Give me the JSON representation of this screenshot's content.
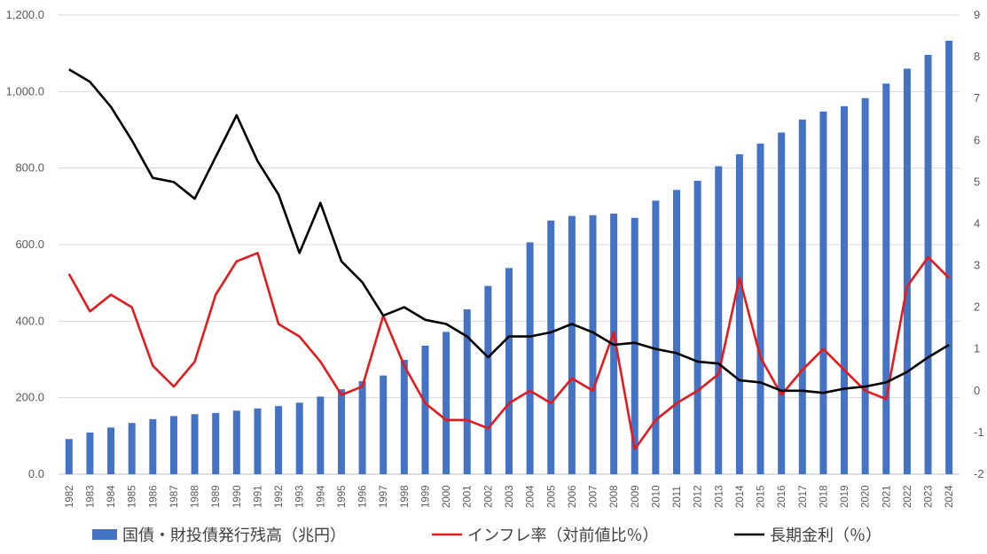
{
  "chart_data": {
    "type": "bar+line",
    "categories": [
      "1982",
      "1983",
      "1984",
      "1985",
      "1986",
      "1987",
      "1988",
      "1989",
      "1990",
      "1991",
      "1992",
      "1993",
      "1994",
      "1995",
      "1996",
      "1997",
      "1998",
      "1999",
      "2000",
      "2001",
      "2002",
      "2003",
      "2004",
      "2005",
      "2006",
      "2007",
      "2008",
      "2009",
      "2010",
      "2011",
      "2012",
      "2013",
      "2014",
      "2015",
      "2016",
      "2017",
      "2018",
      "2019",
      "2020",
      "2021",
      "2022",
      "2023",
      "2024"
    ],
    "left_axis": {
      "ylim": [
        0,
        1200
      ],
      "ticks": [
        "0.0",
        "200.0",
        "400.0",
        "600.0",
        "800.0",
        "1,000.0",
        "1,200.0"
      ],
      "tick_values": [
        0,
        200,
        400,
        600,
        800,
        1000,
        1200
      ]
    },
    "right_axis": {
      "ylim": [
        -2,
        9
      ],
      "ticks": [
        "-2",
        "-1",
        "0",
        "1",
        "2",
        "3",
        "4",
        "5",
        "6",
        "7",
        "8",
        "9"
      ],
      "tick_values": [
        -2,
        -1,
        0,
        1,
        2,
        3,
        4,
        5,
        6,
        7,
        8,
        9
      ]
    },
    "series": [
      {
        "name": "国債・財投債発行残高（兆円）",
        "type": "bar",
        "axis": "left",
        "color": "#4472c4",
        "values": [
          92,
          109,
          122,
          134,
          144,
          152,
          157,
          160,
          166,
          172,
          178,
          187,
          203,
          222,
          243,
          258,
          299,
          336,
          372,
          431,
          492,
          539,
          606,
          663,
          675,
          677,
          681,
          670,
          715,
          743,
          767,
          805,
          836,
          864,
          893,
          927,
          948,
          962,
          983,
          1021,
          1060,
          1096,
          1133
        ]
      },
      {
        "name": "インフレ率（対前値比％）",
        "type": "line",
        "axis": "right",
        "color": "#e41a1c",
        "values": [
          2.8,
          1.9,
          2.3,
          2.0,
          0.6,
          0.1,
          0.7,
          2.3,
          3.1,
          3.3,
          1.6,
          1.3,
          0.7,
          -0.1,
          0.1,
          1.8,
          0.6,
          -0.3,
          -0.7,
          -0.7,
          -0.9,
          -0.3,
          0.0,
          -0.3,
          0.3,
          0.0,
          1.4,
          -1.4,
          -0.7,
          -0.3,
          0.0,
          0.4,
          2.7,
          0.8,
          -0.1,
          0.5,
          1.0,
          0.5,
          0.0,
          -0.2,
          2.5,
          3.2,
          2.7
        ]
      },
      {
        "name": "長期金利（％）",
        "type": "line",
        "axis": "right",
        "color": "#000000",
        "values": [
          7.7,
          7.4,
          6.8,
          6.0,
          5.1,
          5.0,
          4.6,
          5.6,
          6.6,
          5.5,
          4.7,
          3.3,
          4.5,
          3.1,
          2.6,
          1.8,
          2.0,
          1.7,
          1.6,
          1.3,
          0.8,
          1.3,
          1.3,
          1.4,
          1.6,
          1.4,
          1.1,
          1.15,
          1.0,
          0.9,
          0.7,
          0.65,
          0.25,
          0.2,
          0.0,
          0.0,
          -0.05,
          0.05,
          0.1,
          0.2,
          0.45,
          0.8,
          1.1
        ]
      }
    ],
    "grid": true,
    "legend_position": "bottom"
  }
}
